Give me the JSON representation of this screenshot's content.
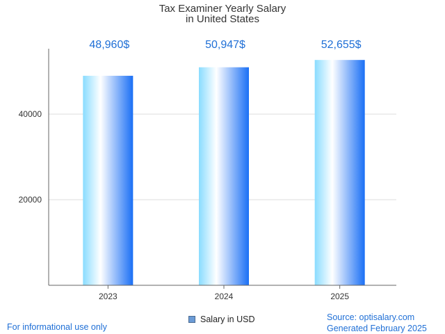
{
  "chart_data": {
    "type": "bar",
    "title_lines": [
      "Tax Examiner Yearly Salary",
      "in United States"
    ],
    "categories": [
      "2023",
      "2024",
      "2025"
    ],
    "series": [
      {
        "name": "Salary in USD",
        "values": [
          48960,
          50947,
          52655
        ]
      }
    ],
    "value_labels": [
      "48,960$",
      "50,947$",
      "52,655$"
    ],
    "y_ticks": [
      20000,
      40000
    ],
    "y_tick_labels": [
      "20000",
      "40000"
    ],
    "ylim": [
      0,
      55000
    ],
    "grid": true,
    "legend_position": "bottom"
  },
  "footer": {
    "left": "For informational use only",
    "source": "Source: optisalary.com",
    "generated": "Generated February 2025"
  },
  "colors": {
    "label_blue": "#1f6fd6",
    "bar_light": "#89dcff",
    "bar_white": "#ffffff",
    "bar_dark": "#1a6ff5",
    "axis": "#666666",
    "grid": "#dddddd",
    "legend_swatch": "#6b9bd6"
  }
}
